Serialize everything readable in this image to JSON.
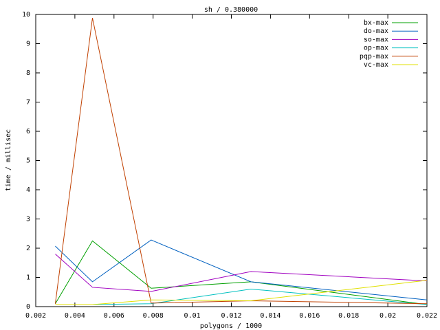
{
  "chart_data": {
    "type": "line",
    "title": "sh / 0.380000",
    "x_label": "polygons / 1000",
    "y_label": "time / millisec",
    "x": [
      0.003,
      0.0049,
      0.0079,
      0.013,
      0.022
    ],
    "series": [
      {
        "name": "bx-max",
        "color": "#00a000",
        "values": [
          0.1,
          2.25,
          0.63,
          0.85,
          0.07
        ]
      },
      {
        "name": "do-max",
        "color": "#0060c0",
        "values": [
          2.07,
          0.85,
          2.28,
          0.85,
          0.23
        ]
      },
      {
        "name": "so-max",
        "color": "#a000c0",
        "values": [
          1.8,
          0.66,
          0.52,
          1.2,
          0.88
        ]
      },
      {
        "name": "op-max",
        "color": "#00c0c0",
        "values": [
          0.07,
          0.07,
          0.1,
          0.6,
          0.07
        ]
      },
      {
        "name": "pqp-max",
        "color": "#c04000",
        "values": [
          0.1,
          9.88,
          0.12,
          0.2,
          0.1
        ]
      },
      {
        "name": "vc-max",
        "color": "#e0e000",
        "values": [
          0.07,
          0.07,
          0.23,
          0.2,
          0.9
        ]
      }
    ],
    "xlim": [
      0.002,
      0.022
    ],
    "xticks": [
      0.002,
      0.004,
      0.006,
      0.008,
      0.01,
      0.012,
      0.014,
      0.016,
      0.018,
      0.02,
      0.022
    ],
    "ylim": [
      0,
      10
    ],
    "yticks": [
      0,
      1,
      2,
      3,
      4,
      5,
      6,
      7,
      8,
      9,
      10
    ],
    "legend": "top-right"
  }
}
